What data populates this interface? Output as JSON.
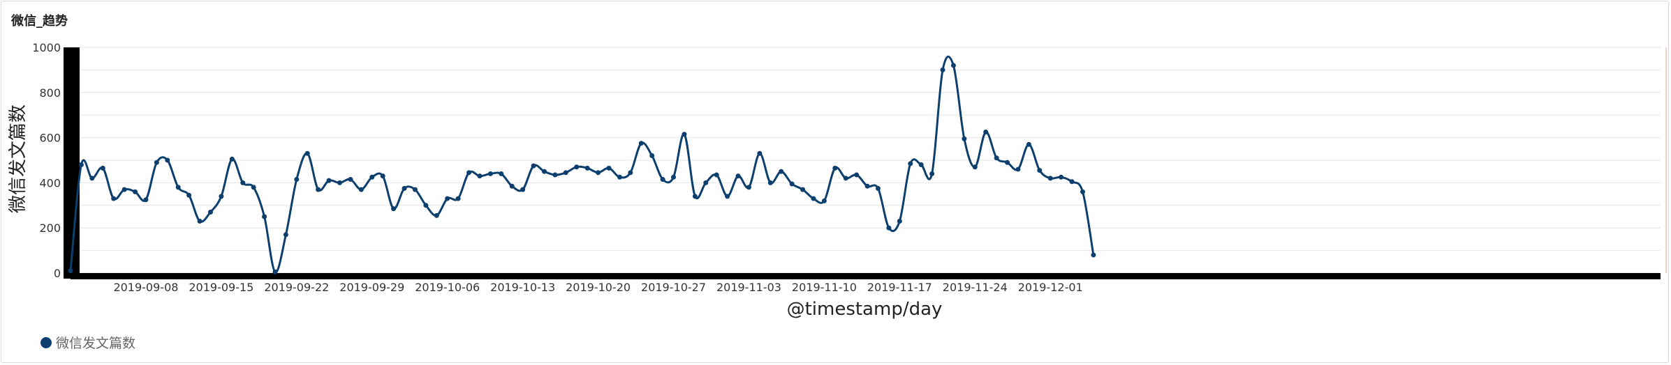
{
  "panel": {
    "title": "微信_趋势"
  },
  "colors": {
    "series": "#0c3f6e",
    "grid": "#e6e6e6",
    "axis": "#000000",
    "accent_right": "#e8a090"
  },
  "chart_data": {
    "type": "line",
    "title": "微信_趋势",
    "xlabel": "@timestamp/day",
    "ylabel": "微信发文篇数",
    "ylim": [
      0,
      1000
    ],
    "y_ticks": [
      0,
      200,
      400,
      600,
      800,
      1000
    ],
    "y_tick_labels": [
      "0",
      "200",
      "400",
      "600",
      "800",
      "1000"
    ],
    "x_ticks": [
      "2019-09-08",
      "2019-09-15",
      "2019-09-22",
      "2019-09-29",
      "2019-10-06",
      "2019-10-13",
      "2019-10-20",
      "2019-10-27",
      "2019-11-03",
      "2019-11-10",
      "2019-11-17",
      "2019-11-24",
      "2019-12-01"
    ],
    "x_start": "2019-09-01",
    "grid": true,
    "legend_position": "bottom-left",
    "series": [
      {
        "name": "微信发文篇数",
        "values": [
          10,
          480,
          420,
          465,
          330,
          370,
          360,
          325,
          490,
          500,
          380,
          345,
          230,
          270,
          340,
          505,
          400,
          380,
          250,
          5,
          170,
          415,
          530,
          370,
          410,
          400,
          415,
          370,
          425,
          430,
          285,
          375,
          370,
          300,
          255,
          330,
          330,
          445,
          430,
          440,
          440,
          385,
          370,
          475,
          450,
          435,
          445,
          470,
          465,
          445,
          465,
          425,
          445,
          575,
          520,
          415,
          425,
          615,
          340,
          400,
          435,
          340,
          430,
          380,
          530,
          400,
          450,
          395,
          370,
          330,
          320,
          465,
          420,
          435,
          385,
          375,
          200,
          230,
          485,
          480,
          440,
          900,
          920,
          595,
          470,
          625,
          510,
          490,
          460,
          570,
          455,
          420,
          425,
          405,
          360,
          80
        ]
      }
    ]
  },
  "legend": {
    "label": "微信发文篇数"
  }
}
